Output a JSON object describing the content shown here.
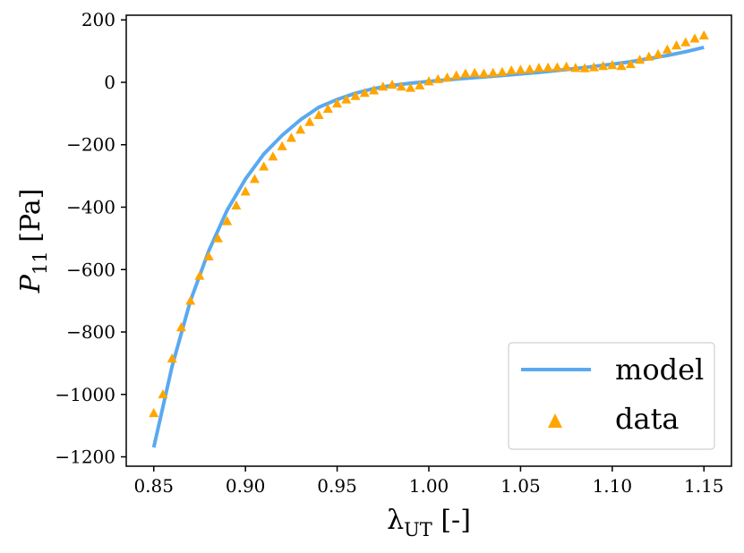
{
  "chart_data": {
    "type": "line",
    "title": "",
    "xlabel": "λ_UT [-]",
    "ylabel": "P_11 [Pa]",
    "xlim": [
      0.835,
      1.165
    ],
    "ylim": [
      -1230,
      215
    ],
    "xticks": [
      0.85,
      0.9,
      0.95,
      1.0,
      1.05,
      1.1,
      1.15
    ],
    "xtick_labels": [
      "0.85",
      "0.90",
      "0.95",
      "1.00",
      "1.05",
      "1.10",
      "1.15"
    ],
    "yticks": [
      200,
      0,
      -200,
      -400,
      -600,
      -800,
      -1000,
      -1200
    ],
    "ytick_labels": [
      "200",
      "0",
      "−200",
      "−400",
      "−600",
      "−800",
      "−1000",
      "−1200"
    ],
    "grid": false,
    "legend_position": "bottom-right",
    "series": [
      {
        "name": "model",
        "kind": "line",
        "color": "#5aa9f0",
        "x": [
          0.85,
          0.86,
          0.87,
          0.88,
          0.89,
          0.9,
          0.91,
          0.92,
          0.93,
          0.94,
          0.95,
          0.96,
          0.97,
          0.98,
          0.99,
          1.0,
          1.01,
          1.02,
          1.03,
          1.04,
          1.05,
          1.06,
          1.07,
          1.08,
          1.09,
          1.1,
          1.11,
          1.12,
          1.13,
          1.14,
          1.15
        ],
        "y": [
          -1170,
          -910,
          -700,
          -540,
          -410,
          -310,
          -230,
          -170,
          -120,
          -80,
          -55,
          -35,
          -20,
          -10,
          -3,
          3,
          8,
          13,
          17,
          22,
          27,
          32,
          38,
          44,
          51,
          58,
          66,
          76,
          86,
          98,
          112
        ]
      },
      {
        "name": "data",
        "kind": "scatter",
        "marker": "triangle",
        "color": "#ffa500",
        "x": [
          0.85,
          0.855,
          0.86,
          0.865,
          0.87,
          0.875,
          0.88,
          0.885,
          0.89,
          0.895,
          0.9,
          0.905,
          0.91,
          0.915,
          0.92,
          0.925,
          0.93,
          0.935,
          0.94,
          0.945,
          0.95,
          0.955,
          0.96,
          0.965,
          0.97,
          0.975,
          0.98,
          0.985,
          0.99,
          0.995,
          1.0,
          1.005,
          1.01,
          1.015,
          1.02,
          1.025,
          1.03,
          1.035,
          1.04,
          1.045,
          1.05,
          1.055,
          1.06,
          1.065,
          1.07,
          1.075,
          1.08,
          1.085,
          1.09,
          1.095,
          1.1,
          1.105,
          1.11,
          1.115,
          1.12,
          1.125,
          1.13,
          1.135,
          1.14,
          1.145,
          1.15
        ],
        "y": [
          -1060,
          -1000,
          -885,
          -785,
          -700,
          -620,
          -558,
          -500,
          -445,
          -395,
          -350,
          -310,
          -270,
          -238,
          -205,
          -178,
          -152,
          -127,
          -105,
          -85,
          -68,
          -55,
          -44,
          -34,
          -26,
          -14,
          -8,
          -14,
          -18,
          -10,
          3,
          10,
          15,
          22,
          28,
          30,
          28,
          30,
          33,
          38,
          40,
          42,
          46,
          47,
          48,
          50,
          46,
          45,
          48,
          52,
          55,
          52,
          58,
          72,
          82,
          90,
          105,
          118,
          128,
          140,
          150
        ]
      }
    ]
  }
}
